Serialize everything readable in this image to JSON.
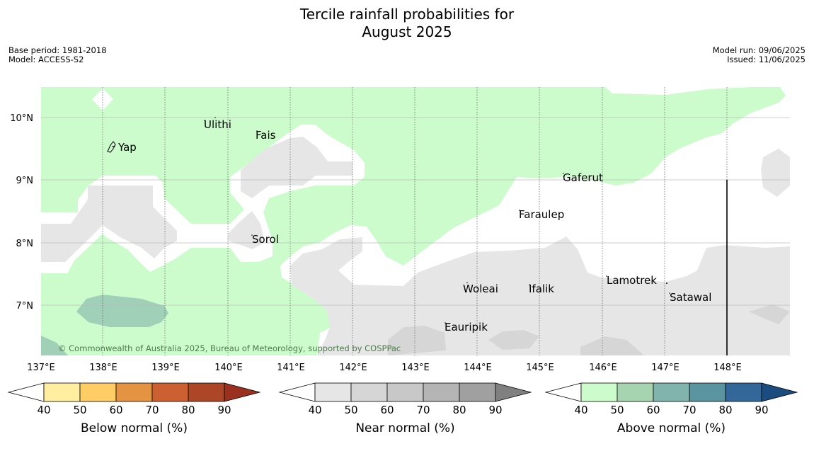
{
  "title_line1": "Tercile rainfall probabilities for",
  "title_line2": "August 2025",
  "meta": {
    "base_period": "Base period: 1981-2018",
    "model": "Model: ACCESS-S2",
    "model_run": "Model run: 09/06/2025",
    "issued": "Issued: 11/06/2025"
  },
  "map": {
    "lon_labels": [
      "137°E",
      "138°E",
      "139°E",
      "140°E",
      "141°E",
      "142°E",
      "143°E",
      "144°E",
      "145°E",
      "146°E",
      "147°E",
      "148°E"
    ],
    "lat_labels": [
      "10°N",
      "9°N",
      "8°N",
      "7°N"
    ],
    "places": [
      "Yap",
      "Ulithi",
      "Fais",
      "Gaferut",
      "Faraulep",
      "Sorol",
      "Woleai",
      "Ifalik",
      "Lamotrek",
      "Satawal",
      "Eauripik"
    ],
    "copyright": "© Commonwealth of Australia 2025, Bureau of Meteorology, supported by COSPPac",
    "colors": {
      "above_40_50": "#ccfccc",
      "above_50_60": "#a0d0b8",
      "near_40_50": "#e6e6e6",
      "near_50_60": "#d6d6d6",
      "no_dominant": "#ffffff"
    }
  },
  "colorbars": [
    {
      "label": "Below normal (%)",
      "ticks": [
        "40",
        "50",
        "60",
        "70",
        "80",
        "90"
      ],
      "colors": [
        "#ffffff",
        "#ffeea0",
        "#ffcc66",
        "#e39342",
        "#cc6033",
        "#ad4527",
        "#993020"
      ]
    },
    {
      "label": "Near normal (%)",
      "ticks": [
        "40",
        "50",
        "60",
        "70",
        "80",
        "90"
      ],
      "colors": [
        "#ffffff",
        "#e6e6e6",
        "#d6d6d6",
        "#c8c8c8",
        "#b4b4b4",
        "#a0a0a0",
        "#808080"
      ]
    },
    {
      "label": "Above normal (%)",
      "ticks": [
        "40",
        "50",
        "60",
        "70",
        "80",
        "90"
      ],
      "colors": [
        "#ffffff",
        "#ccfccc",
        "#a6d4b0",
        "#80b4ac",
        "#5a94a0",
        "#336699",
        "#1a4c80"
      ]
    }
  ]
}
